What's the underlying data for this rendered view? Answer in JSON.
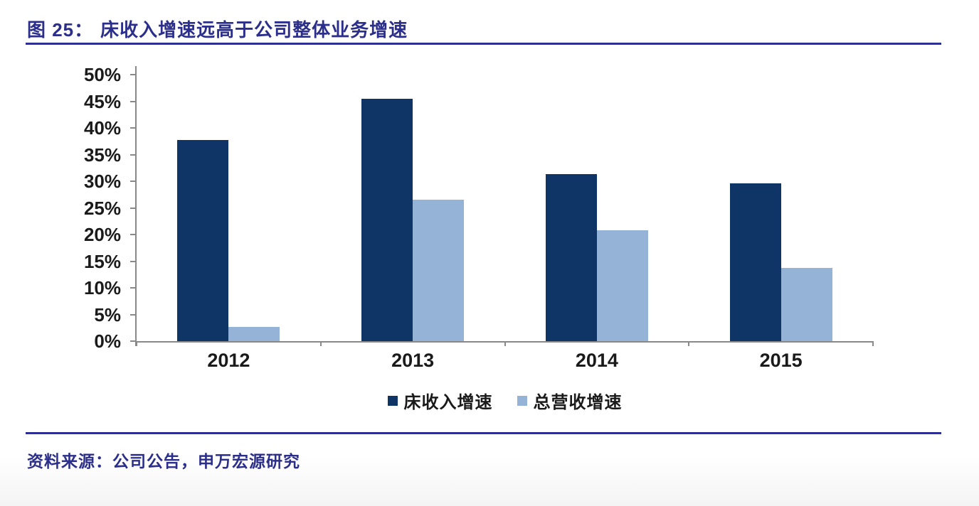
{
  "header": {
    "figure_label": "图 25：",
    "title": "床收入增速远高于公司整体业务增速"
  },
  "footer": {
    "source": "资料来源：公司公告，申万宏源研究"
  },
  "colors": {
    "accent_line": "#2D3092",
    "heading_text": "#2B2E8A",
    "axis": "#898989",
    "tick_text": "#1A1A1A"
  },
  "chart_data": {
    "type": "bar",
    "categories": [
      "2012",
      "2013",
      "2014",
      "2015"
    ],
    "series": [
      {
        "name": "床收入增速",
        "color": "#0E3565",
        "values": [
          37.8,
          45.5,
          31.4,
          29.6
        ]
      },
      {
        "name": "总营收增速",
        "color": "#95B3D7",
        "values": [
          2.7,
          26.5,
          20.8,
          13.7
        ]
      }
    ],
    "ylim": [
      0,
      50
    ],
    "ytick_step": 5,
    "ytick_labels": [
      "0%",
      "5%",
      "10%",
      "15%",
      "20%",
      "25%",
      "30%",
      "35%",
      "40%",
      "45%",
      "50%"
    ],
    "grid": false,
    "legend_position": "bottom"
  }
}
